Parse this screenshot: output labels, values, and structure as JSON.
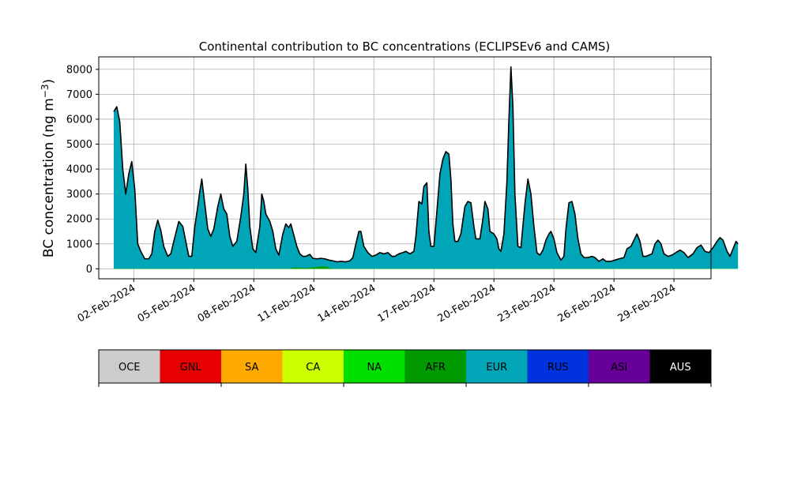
{
  "chart_data": {
    "type": "area",
    "title": "Continental contribution to BC concentrations (ECLIPSEv6 and CAMS)",
    "ylabel_main": "BC concentration (ng m",
    "ylabel_sup": "−3",
    "ylabel_close": ")",
    "xlabel": "",
    "grid": true,
    "ylim": [
      -400,
      8500
    ],
    "y_ticks": [
      0,
      1000,
      2000,
      3000,
      4000,
      5000,
      6000,
      7000,
      8000
    ],
    "x_range_days": [
      -0.75,
      29.85
    ],
    "x_ticks": [
      {
        "day": 1,
        "label": "02-Feb-2024"
      },
      {
        "day": 4,
        "label": "05-Feb-2024"
      },
      {
        "day": 7,
        "label": "08-Feb-2024"
      },
      {
        "day": 10,
        "label": "11-Feb-2024"
      },
      {
        "day": 13,
        "label": "14-Feb-2024"
      },
      {
        "day": 16,
        "label": "17-Feb-2024"
      },
      {
        "day": 19,
        "label": "20-Feb-2024"
      },
      {
        "day": 22,
        "label": "23-Feb-2024"
      },
      {
        "day": 25,
        "label": "26-Feb-2024"
      },
      {
        "day": 28,
        "label": "29-Feb-2024"
      }
    ],
    "x_unit": "days after 01-Feb-2024 00:00",
    "legend_position": "bottom colorbar",
    "legend": [
      {
        "name": "OCE",
        "color": "#cccccc",
        "text_color": "#000000"
      },
      {
        "name": "GNL",
        "color": "#e60000",
        "text_color": "#000000"
      },
      {
        "name": "SA",
        "color": "#ffaa00",
        "text_color": "#000000"
      },
      {
        "name": "CA",
        "color": "#ccff00",
        "text_color": "#000000"
      },
      {
        "name": "NA",
        "color": "#00e000",
        "text_color": "#000000"
      },
      {
        "name": "AFR",
        "color": "#009900",
        "text_color": "#000000"
      },
      {
        "name": "EUR",
        "color": "#00a5b8",
        "text_color": "#000000"
      },
      {
        "name": "RUS",
        "color": "#0033dd",
        "text_color": "#000000"
      },
      {
        "name": "ASI",
        "color": "#660099",
        "text_color": "#000000"
      },
      {
        "name": "AUS",
        "color": "#000000",
        "text_color": "#ffffff"
      }
    ],
    "series": [
      {
        "name": "EUR",
        "color": "#00a5b8",
        "points": [
          [
            0.0,
            6300
          ],
          [
            0.15,
            6500
          ],
          [
            0.3,
            5900
          ],
          [
            0.45,
            4000
          ],
          [
            0.6,
            3000
          ],
          [
            0.75,
            3800
          ],
          [
            0.9,
            4300
          ],
          [
            1.05,
            3200
          ],
          [
            1.2,
            1000
          ],
          [
            1.35,
            700
          ],
          [
            1.55,
            400
          ],
          [
            1.75,
            400
          ],
          [
            1.9,
            600
          ],
          [
            2.05,
            1500
          ],
          [
            2.2,
            1950
          ],
          [
            2.35,
            1550
          ],
          [
            2.5,
            900
          ],
          [
            2.7,
            500
          ],
          [
            2.85,
            600
          ],
          [
            3.0,
            1100
          ],
          [
            3.25,
            1900
          ],
          [
            3.45,
            1700
          ],
          [
            3.6,
            1100
          ],
          [
            3.75,
            500
          ],
          [
            3.9,
            500
          ],
          [
            4.05,
            1700
          ],
          [
            4.2,
            2500
          ],
          [
            4.3,
            3100
          ],
          [
            4.4,
            3600
          ],
          [
            4.55,
            2600
          ],
          [
            4.7,
            1600
          ],
          [
            4.85,
            1300
          ],
          [
            5.0,
            1600
          ],
          [
            5.2,
            2500
          ],
          [
            5.35,
            3000
          ],
          [
            5.5,
            2400
          ],
          [
            5.65,
            2200
          ],
          [
            5.8,
            1300
          ],
          [
            5.95,
            900
          ],
          [
            6.15,
            1100
          ],
          [
            6.35,
            2100
          ],
          [
            6.5,
            3000
          ],
          [
            6.6,
            4200
          ],
          [
            6.7,
            3200
          ],
          [
            6.8,
            1700
          ],
          [
            6.95,
            800
          ],
          [
            7.1,
            650
          ],
          [
            7.3,
            1700
          ],
          [
            7.4,
            3000
          ],
          [
            7.5,
            2700
          ],
          [
            7.6,
            2200
          ],
          [
            7.8,
            1900
          ],
          [
            7.95,
            1500
          ],
          [
            8.1,
            800
          ],
          [
            8.25,
            550
          ],
          [
            8.45,
            1400
          ],
          [
            8.6,
            1800
          ],
          [
            8.75,
            1650
          ],
          [
            8.85,
            1800
          ],
          [
            9.0,
            1350
          ],
          [
            9.15,
            900
          ],
          [
            9.3,
            600
          ],
          [
            9.45,
            500
          ],
          [
            9.6,
            500
          ],
          [
            9.8,
            580
          ],
          [
            9.95,
            420
          ],
          [
            10.15,
            400
          ],
          [
            10.35,
            420
          ],
          [
            10.55,
            400
          ],
          [
            10.75,
            350
          ],
          [
            10.95,
            320
          ],
          [
            11.15,
            280
          ],
          [
            11.35,
            300
          ],
          [
            11.6,
            280
          ],
          [
            11.8,
            320
          ],
          [
            11.95,
            450
          ],
          [
            12.1,
            1000
          ],
          [
            12.25,
            1500
          ],
          [
            12.35,
            1500
          ],
          [
            12.5,
            900
          ],
          [
            12.7,
            650
          ],
          [
            12.9,
            500
          ],
          [
            13.1,
            550
          ],
          [
            13.3,
            650
          ],
          [
            13.5,
            600
          ],
          [
            13.7,
            650
          ],
          [
            13.9,
            500
          ],
          [
            14.05,
            500
          ],
          [
            14.25,
            600
          ],
          [
            14.45,
            650
          ],
          [
            14.6,
            700
          ],
          [
            14.8,
            600
          ],
          [
            15.0,
            700
          ],
          [
            15.1,
            1300
          ],
          [
            15.25,
            2700
          ],
          [
            15.4,
            2600
          ],
          [
            15.5,
            3300
          ],
          [
            15.65,
            3450
          ],
          [
            15.75,
            1500
          ],
          [
            15.85,
            900
          ],
          [
            16.0,
            900
          ],
          [
            16.15,
            2300
          ],
          [
            16.3,
            3800
          ],
          [
            16.45,
            4400
          ],
          [
            16.6,
            4700
          ],
          [
            16.75,
            4600
          ],
          [
            16.85,
            3600
          ],
          [
            16.95,
            1800
          ],
          [
            17.05,
            1100
          ],
          [
            17.2,
            1100
          ],
          [
            17.35,
            1400
          ],
          [
            17.55,
            2500
          ],
          [
            17.7,
            2700
          ],
          [
            17.85,
            2650
          ],
          [
            18.0,
            1700
          ],
          [
            18.1,
            1200
          ],
          [
            18.3,
            1200
          ],
          [
            18.45,
            2000
          ],
          [
            18.55,
            2700
          ],
          [
            18.7,
            2400
          ],
          [
            18.8,
            1500
          ],
          [
            19.0,
            1400
          ],
          [
            19.15,
            1200
          ],
          [
            19.25,
            800
          ],
          [
            19.35,
            700
          ],
          [
            19.5,
            1400
          ],
          [
            19.65,
            3500
          ],
          [
            19.75,
            6000
          ],
          [
            19.85,
            8100
          ],
          [
            19.95,
            6500
          ],
          [
            20.05,
            3000
          ],
          [
            20.2,
            900
          ],
          [
            20.35,
            850
          ],
          [
            20.55,
            2600
          ],
          [
            20.7,
            3600
          ],
          [
            20.85,
            3000
          ],
          [
            21.0,
            1700
          ],
          [
            21.15,
            650
          ],
          [
            21.3,
            550
          ],
          [
            21.45,
            750
          ],
          [
            21.6,
            1150
          ],
          [
            21.75,
            1400
          ],
          [
            21.85,
            1500
          ],
          [
            22.0,
            1200
          ],
          [
            22.15,
            650
          ],
          [
            22.35,
            350
          ],
          [
            22.5,
            500
          ],
          [
            22.6,
            1600
          ],
          [
            22.75,
            2650
          ],
          [
            22.9,
            2700
          ],
          [
            23.05,
            2200
          ],
          [
            23.2,
            1200
          ],
          [
            23.35,
            600
          ],
          [
            23.5,
            450
          ],
          [
            23.7,
            450
          ],
          [
            23.9,
            500
          ],
          [
            24.05,
            450
          ],
          [
            24.25,
            300
          ],
          [
            24.45,
            400
          ],
          [
            24.6,
            300
          ],
          [
            24.85,
            300
          ],
          [
            25.05,
            350
          ],
          [
            25.25,
            400
          ],
          [
            25.5,
            450
          ],
          [
            25.65,
            800
          ],
          [
            25.85,
            900
          ],
          [
            26.0,
            1150
          ],
          [
            26.15,
            1400
          ],
          [
            26.3,
            1100
          ],
          [
            26.45,
            500
          ],
          [
            26.6,
            500
          ],
          [
            26.75,
            550
          ],
          [
            26.9,
            600
          ],
          [
            27.05,
            1000
          ],
          [
            27.2,
            1150
          ],
          [
            27.35,
            1000
          ],
          [
            27.5,
            600
          ],
          [
            27.7,
            500
          ],
          [
            27.9,
            550
          ],
          [
            28.1,
            650
          ],
          [
            28.3,
            750
          ],
          [
            28.5,
            650
          ],
          [
            28.7,
            450
          ],
          [
            28.95,
            600
          ],
          [
            29.15,
            850
          ],
          [
            29.35,
            950
          ],
          [
            29.55,
            700
          ],
          [
            29.75,
            650
          ],
          [
            29.95,
            850
          ],
          [
            30.15,
            1100
          ],
          [
            30.3,
            1250
          ],
          [
            30.45,
            1150
          ],
          [
            30.65,
            700
          ],
          [
            30.8,
            500
          ],
          [
            30.95,
            800
          ],
          [
            31.1,
            1100
          ],
          [
            31.2,
            1000
          ]
        ]
      },
      {
        "name": "AFR",
        "color": "#009900",
        "points": [
          [
            8.7,
            0
          ],
          [
            8.9,
            40
          ],
          [
            9.1,
            60
          ],
          [
            9.3,
            40
          ],
          [
            9.6,
            30
          ],
          [
            9.9,
            50
          ],
          [
            10.2,
            80
          ],
          [
            10.4,
            100
          ],
          [
            10.6,
            90
          ],
          [
            10.8,
            40
          ],
          [
            11.0,
            0
          ]
        ]
      },
      {
        "name": "NA",
        "color": "#00e000",
        "points": [
          [
            0.0,
            12
          ],
          [
            31.2,
            12
          ]
        ]
      }
    ]
  }
}
